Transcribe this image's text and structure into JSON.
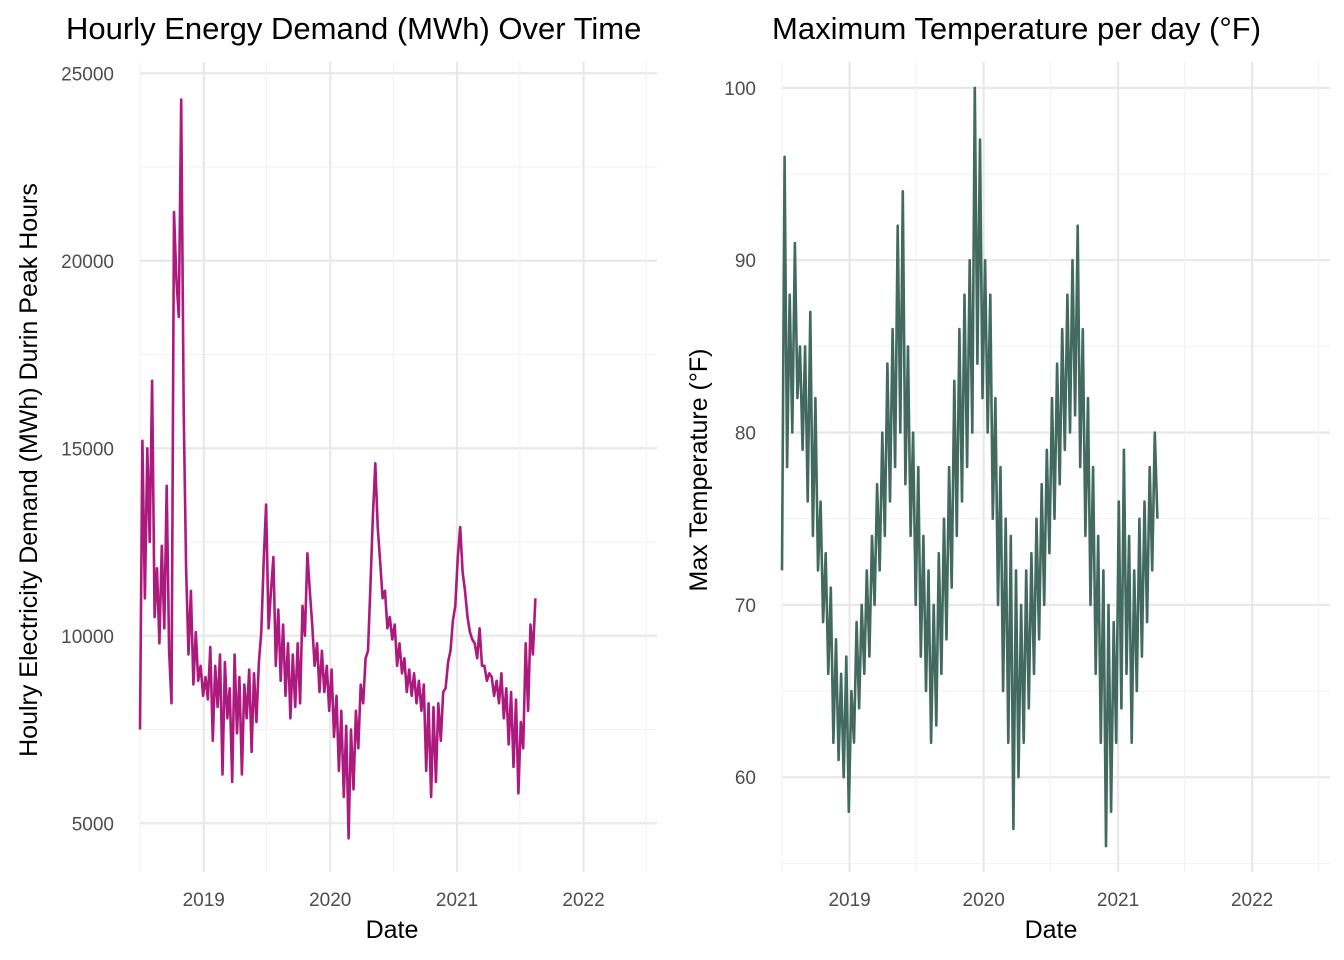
{
  "chart_data": [
    {
      "type": "line",
      "title": "Hourly Energy Demand (MWh) Over Time",
      "xlabel": "Date",
      "ylabel": "Houlry Electricity Demand (MWh) Durin Peak Hours",
      "x_range": [
        "2018-07-01",
        "2022-08-01"
      ],
      "ylim": [
        3700,
        25300
      ],
      "y_ticks": [
        5000,
        10000,
        15000,
        20000,
        25000
      ],
      "x_ticks": [
        "2019",
        "2020",
        "2021",
        "2022"
      ],
      "grid": true,
      "color": "#ac1a7d",
      "series": [
        {
          "sampling": "weekly samples starting 2018-07-01",
          "values": [
            7500,
            15200,
            11000,
            15000,
            12500,
            16800,
            10500,
            11800,
            9800,
            12400,
            10200,
            14000,
            9600,
            8200,
            21300,
            19500,
            18500,
            24300,
            16000,
            11800,
            9500,
            11200,
            8700,
            10100,
            8800,
            9200,
            8400,
            8900,
            8300,
            9700,
            7200,
            9200,
            8100,
            9500,
            6300,
            9300,
            7800,
            8600,
            6100,
            9500,
            7400,
            8900,
            6300,
            8700,
            7800,
            9100,
            6900,
            9000,
            7700,
            9300,
            10100,
            12000,
            13500,
            10200,
            11200,
            12100,
            9200,
            10700,
            8800,
            10300,
            8400,
            9800,
            7800,
            9500,
            8100,
            9800,
            8200,
            10800,
            10000,
            12200,
            11200,
            10300,
            9200,
            9800,
            8500,
            9600,
            8500,
            9200,
            8000,
            9100,
            7300,
            8400,
            6400,
            8000,
            5700,
            7600,
            4600,
            7500,
            5900,
            8000,
            7000,
            8700,
            8200,
            9400,
            9600,
            11300,
            13200,
            14600,
            12900,
            12000,
            11000,
            11200,
            10200,
            10500,
            9900,
            10300,
            9200,
            9800,
            9000,
            9400,
            8500,
            9100,
            8400,
            9000,
            8200,
            8800,
            8000,
            8700,
            6400,
            8200,
            5700,
            8100,
            6100,
            8200,
            7200,
            8500,
            8600,
            9300,
            9600,
            10400,
            10800,
            12100,
            12900,
            11700,
            11200,
            10500,
            10100,
            9900,
            9800,
            9400,
            10200,
            9200,
            9200,
            8800,
            9000,
            8900,
            8400,
            8800,
            8200,
            9000,
            7800,
            8600,
            7100,
            8500,
            6500,
            8300,
            5800,
            7700,
            7000,
            9800,
            8000,
            10300,
            9500,
            11000
          ],
          "notes": "approximate reading of a dense daily series"
        }
      ]
    },
    {
      "type": "line",
      "title": "Maximum Temperature per day (°F)",
      "xlabel": "Date",
      "ylabel": "Max Temperature (°F)",
      "x_range": [
        "2018-07-01",
        "2022-08-01"
      ],
      "ylim": [
        54.5,
        101.5
      ],
      "y_ticks": [
        60,
        70,
        80,
        90,
        100
      ],
      "x_ticks": [
        "2019",
        "2020",
        "2021",
        "2022"
      ],
      "grid": true,
      "color": "#436a5e",
      "series": [
        {
          "sampling": "weekly samples starting 2018-07-01",
          "values": [
            72,
            96,
            78,
            88,
            80,
            91,
            82,
            85,
            79,
            85,
            76,
            87,
            74,
            82,
            72,
            76,
            69,
            73,
            66,
            71,
            62,
            68,
            61,
            66,
            60,
            67,
            58,
            65,
            62,
            69,
            64,
            70,
            66,
            72,
            67,
            74,
            70,
            77,
            72,
            80,
            74,
            84,
            76,
            86,
            78,
            92,
            80,
            94,
            77,
            85,
            74,
            80,
            70,
            78,
            67,
            74,
            65,
            72,
            62,
            70,
            63,
            73,
            66,
            75,
            68,
            78,
            71,
            83,
            74,
            86,
            76,
            88,
            78,
            90,
            80,
            100,
            84,
            97,
            82,
            90,
            80,
            88,
            75,
            82,
            70,
            78,
            65,
            75,
            62,
            74,
            57,
            72,
            60,
            70,
            62,
            72,
            64,
            73,
            66,
            75,
            68,
            77,
            70,
            79,
            73,
            82,
            75,
            84,
            77,
            86,
            79,
            88,
            80,
            90,
            81,
            92,
            78,
            86,
            74,
            82,
            70,
            78,
            66,
            74,
            62,
            72,
            56,
            70,
            58,
            69,
            62,
            76,
            64,
            79,
            66,
            74,
            62,
            72,
            65,
            75,
            67,
            76,
            69,
            78,
            72,
            80,
            75
          ],
          "notes": "approximate reading of a dense daily series"
        }
      ]
    }
  ]
}
